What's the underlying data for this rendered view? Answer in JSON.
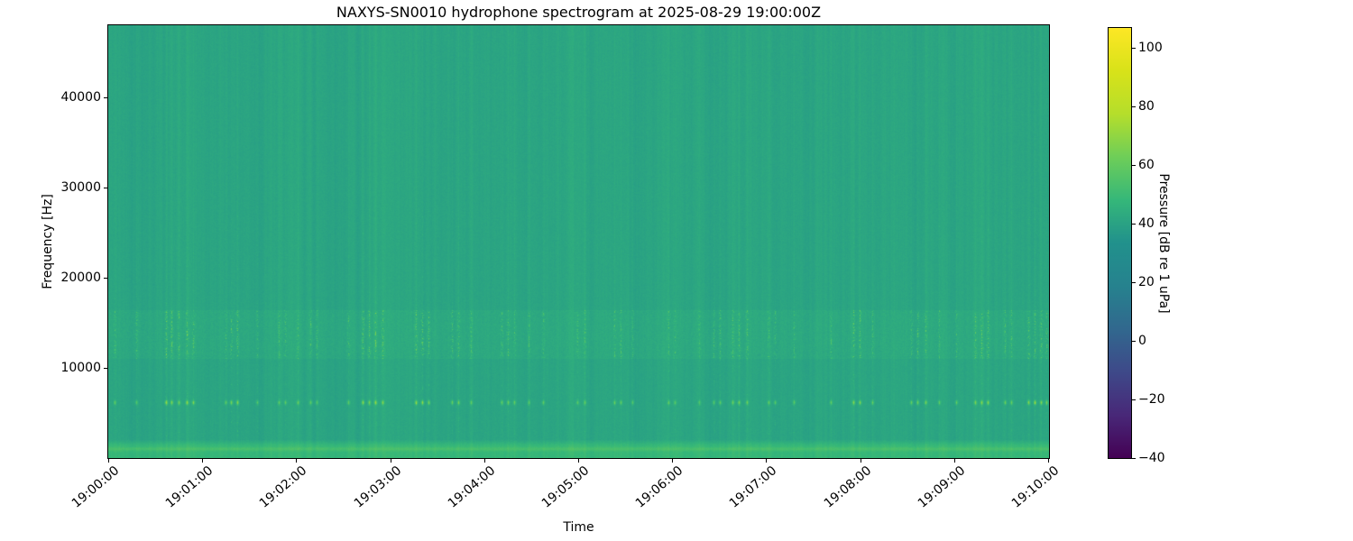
{
  "figure": {
    "background_color": "#ffffff",
    "text_color": "#000000"
  },
  "chart_data": {
    "type": "heatmap",
    "subtype": "hydrophone-spectrogram",
    "title": "NAXYS-SN0010 hydrophone spectrogram at 2025-08-29 19:00:00Z",
    "xlabel": "Time",
    "ylabel": "Frequency [Hz]",
    "x_duration_s": 600,
    "x_tick_seconds": [
      0,
      60,
      120,
      180,
      240,
      300,
      360,
      420,
      480,
      540,
      600
    ],
    "x_tick_labels": [
      "19:00:00",
      "19:01:00",
      "19:02:00",
      "19:03:00",
      "19:04:00",
      "19:05:00",
      "19:06:00",
      "19:07:00",
      "19:08:00",
      "19:09:00",
      "19:10:00"
    ],
    "freq_min_hz": 0,
    "freq_max_hz": 48000,
    "y_ticks_hz": [
      10000,
      20000,
      30000,
      40000
    ],
    "y_tick_labels": [
      "10000",
      "20000",
      "30000",
      "40000"
    ],
    "colorbar": {
      "label": "Pressure [dB re 1 uPa]",
      "tick_values": [
        100,
        80,
        60,
        40,
        20,
        0,
        -20,
        -40
      ],
      "tick_labels": [
        "100",
        "80",
        "60",
        "40",
        "20",
        "0",
        "−20",
        "−40"
      ],
      "vmin_db": -40,
      "vmax_db": 106.8,
      "colormap": "viridis",
      "colormap_stops": [
        "#440154",
        "#482878",
        "#3e4989",
        "#31688e",
        "#26828e",
        "#21918c",
        "#35b779",
        "#6ece58",
        "#b5de2b",
        "#d8e219",
        "#fde725"
      ]
    },
    "background_level_db": 41,
    "bands": [
      {
        "name": "low-frequency-noise-band",
        "f_lo_hz": 0,
        "f_hi_hz": 2100,
        "boost_db": 7
      },
      {
        "name": "low-frequency-tonal-line",
        "f_lo_hz": 800,
        "f_hi_hz": 1300,
        "boost_db": 5
      },
      {
        "name": "mid-band-texture",
        "f_lo_hz": 11000,
        "f_hi_hz": 16500,
        "boost_db": 1.5
      }
    ],
    "pulse_tone_hz": 6200,
    "pulse_band_lo_hz": 11000,
    "pulse_band_hi_hz": 16500,
    "pulse_peak_boost_db": 30,
    "pulses": [
      [
        4,
        0.6
      ],
      [
        18,
        0.55
      ],
      [
        37,
        1.0
      ],
      [
        40,
        0.85
      ],
      [
        45,
        0.7
      ],
      [
        50,
        0.95
      ],
      [
        54,
        0.8
      ],
      [
        75,
        0.6
      ],
      [
        78,
        0.85
      ],
      [
        82,
        0.9
      ],
      [
        95,
        0.5
      ],
      [
        109,
        0.55
      ],
      [
        113,
        0.6
      ],
      [
        121,
        0.65
      ],
      [
        129,
        0.6
      ],
      [
        133,
        0.55
      ],
      [
        153,
        0.6
      ],
      [
        162,
        0.9
      ],
      [
        166,
        0.8
      ],
      [
        170,
        0.95
      ],
      [
        175,
        0.85
      ],
      [
        196,
        0.9
      ],
      [
        200,
        1.0
      ],
      [
        204,
        0.8
      ],
      [
        219,
        0.7
      ],
      [
        223,
        0.75
      ],
      [
        231,
        0.6
      ],
      [
        251,
        0.65
      ],
      [
        255,
        0.7
      ],
      [
        259,
        0.6
      ],
      [
        268,
        0.55
      ],
      [
        277,
        0.6
      ],
      [
        299,
        0.55
      ],
      [
        304,
        0.6
      ],
      [
        323,
        0.65
      ],
      [
        327,
        0.6
      ],
      [
        334,
        0.55
      ],
      [
        357,
        0.6
      ],
      [
        361,
        0.55
      ],
      [
        377,
        0.5
      ],
      [
        386,
        0.6
      ],
      [
        390,
        0.65
      ],
      [
        398,
        0.7
      ],
      [
        402,
        0.75
      ],
      [
        407,
        0.7
      ],
      [
        421,
        0.65
      ],
      [
        425,
        0.6
      ],
      [
        437,
        0.55
      ],
      [
        461,
        0.6
      ],
      [
        475,
        0.9
      ],
      [
        479,
        0.85
      ],
      [
        487,
        0.6
      ],
      [
        512,
        0.7
      ],
      [
        516,
        0.8
      ],
      [
        521,
        0.75
      ],
      [
        530,
        0.6
      ],
      [
        541,
        0.6
      ],
      [
        553,
        0.8
      ],
      [
        557,
        0.9
      ],
      [
        561,
        0.85
      ],
      [
        572,
        0.7
      ],
      [
        576,
        0.65
      ],
      [
        587,
        0.9
      ],
      [
        591,
        0.95
      ],
      [
        595,
        0.85
      ],
      [
        598,
        0.8
      ]
    ],
    "noise_seed": 42
  }
}
